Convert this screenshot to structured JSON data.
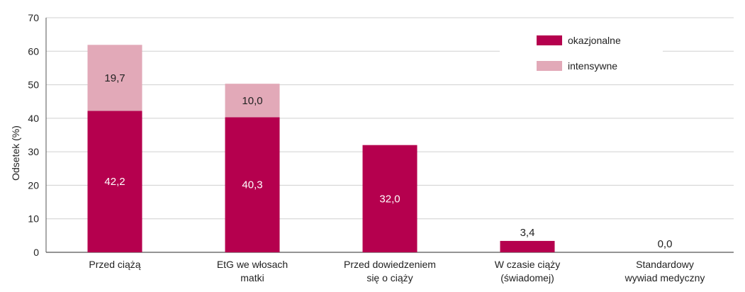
{
  "chart_data": {
    "type": "bar",
    "stacked": true,
    "ylabel": "Odsetek (%)",
    "ylim": [
      0,
      70
    ],
    "yticks": [
      0,
      10,
      20,
      30,
      40,
      50,
      60,
      70
    ],
    "grid": true,
    "legend_position": "top-right",
    "categories": [
      [
        "Przed ciążą"
      ],
      [
        "EtG we włosach",
        "matki"
      ],
      [
        "Przed dowiedzeniem",
        "się o ciąży"
      ],
      [
        "W czasie ciąży",
        "(świadomej)"
      ],
      [
        "Standardowy",
        "wywiad medyczny"
      ]
    ],
    "series": [
      {
        "name": "okazjonalne",
        "color": "#b5004e",
        "values": [
          42.2,
          40.3,
          32.0,
          3.4,
          0.0
        ],
        "labels": [
          "42,2",
          "40,3",
          "32,0",
          "3,4",
          "0,0"
        ]
      },
      {
        "name": "intensywne",
        "color": "#e2a9b8",
        "values": [
          19.7,
          10.0,
          null,
          null,
          null
        ],
        "labels": [
          "19,7",
          "10,0",
          "",
          "",
          ""
        ]
      }
    ]
  }
}
